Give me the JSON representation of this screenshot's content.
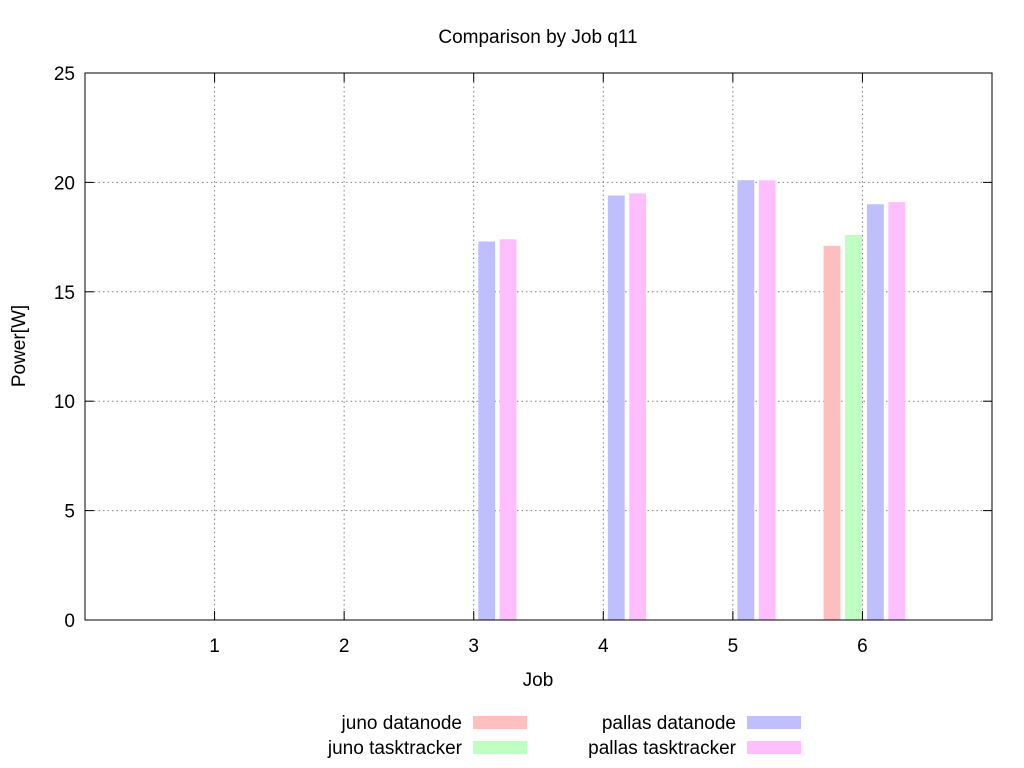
{
  "chart_data": {
    "type": "bar",
    "title": "Comparison by Job q11",
    "xlabel": "Job",
    "ylabel": "Power[W]",
    "categories": [
      "1",
      "2",
      "3",
      "4",
      "5",
      "6"
    ],
    "ylim": [
      0,
      25
    ],
    "yticks": [
      "0",
      "5",
      "10",
      "15",
      "20",
      "25"
    ],
    "grid": true,
    "legend_position": "bottom",
    "series": [
      {
        "name": "juno datanode",
        "color": "#ffbfbf",
        "values": [
          null,
          null,
          null,
          null,
          null,
          17.1
        ]
      },
      {
        "name": "juno tasktracker",
        "color": "#bfffbf",
        "values": [
          null,
          null,
          null,
          null,
          null,
          17.6
        ]
      },
      {
        "name": "pallas datanode",
        "color": "#bfbfff",
        "values": [
          null,
          null,
          17.3,
          19.4,
          20.1,
          19.0
        ]
      },
      {
        "name": "pallas tasktracker",
        "color": "#ffbfff",
        "values": [
          null,
          null,
          17.4,
          19.5,
          20.1,
          19.1
        ]
      }
    ]
  }
}
